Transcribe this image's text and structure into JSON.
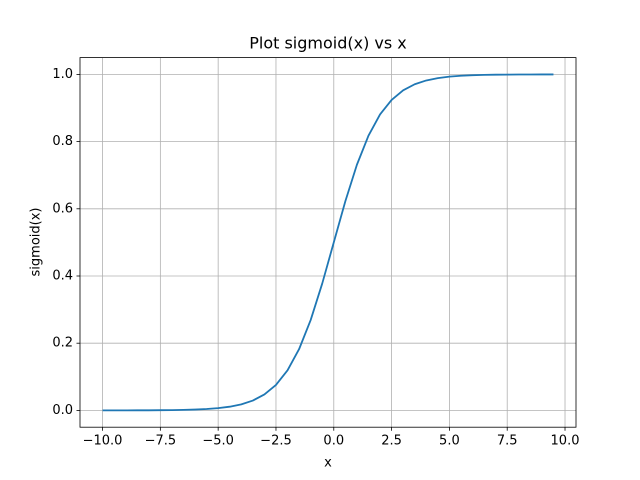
{
  "chart_data": {
    "type": "line",
    "title": "Plot sigmoid(x) vs x",
    "x_label": "x",
    "y_label": "sigmoid(x)",
    "x": [
      -10,
      -9.5,
      -9,
      -8.5,
      -8,
      -7.5,
      -7,
      -6.5,
      -6,
      -5.5,
      -5,
      -4.5,
      -4,
      -3.5,
      -3,
      -2.5,
      -2,
      -1.5,
      -1,
      -0.5,
      0,
      0.5,
      1,
      1.5,
      2,
      2.5,
      3,
      3.5,
      4,
      4.5,
      5,
      5.5,
      6,
      6.5,
      7,
      7.5,
      8,
      8.5,
      9,
      9.5
    ],
    "values": [
      0.0,
      0.0001,
      0.0001,
      0.0002,
      0.0003,
      0.0006,
      0.0009,
      0.0015,
      0.0025,
      0.0041,
      0.0067,
      0.011,
      0.018,
      0.0293,
      0.0474,
      0.0759,
      0.1192,
      0.1824,
      0.2689,
      0.3775,
      0.5,
      0.6225,
      0.7311,
      0.8176,
      0.8808,
      0.9241,
      0.9526,
      0.9707,
      0.982,
      0.989,
      0.9933,
      0.9959,
      0.9975,
      0.9985,
      0.9991,
      0.9994,
      0.9997,
      0.9998,
      0.9999,
      0.9999
    ],
    "color": "#1f77b4",
    "xlim": [
      -10.975,
      10.475
    ],
    "xticks": [
      {
        "value": -10,
        "label": "−10.0"
      },
      {
        "value": -7.5,
        "label": "−7.5"
      },
      {
        "value": -5,
        "label": "−5.0"
      },
      {
        "value": -2.5,
        "label": "−2.5"
      },
      {
        "value": 0,
        "label": "0.0"
      },
      2.5,
      {
        "value": 5,
        "label": "5.0"
      },
      7.5,
      {
        "value": 10,
        "label": "10.0"
      }
    ],
    "ylim": [
      -0.05,
      1.05
    ],
    "yticks": [
      {
        "value": 0,
        "label": "0.0"
      },
      0.2,
      0.4,
      0.6,
      0.8,
      {
        "value": 1,
        "label": "1.0"
      }
    ],
    "grid": true
  }
}
